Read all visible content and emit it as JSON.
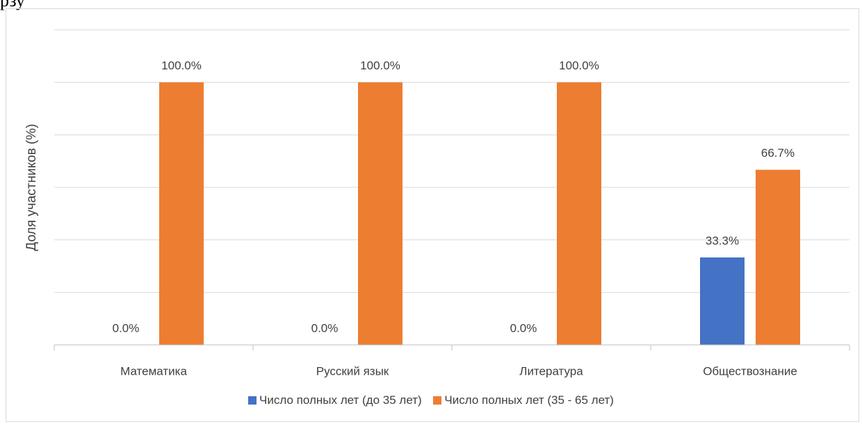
{
  "page_text": "рзу",
  "chart_data": {
    "type": "bar",
    "categories": [
      "Математика",
      "Русский язык",
      "Литература",
      "Обществознание"
    ],
    "series": [
      {
        "name": "Число полных лет (до 35 лет)",
        "values": [
          0.0,
          0.0,
          0.0,
          33.3
        ],
        "labels": [
          "0.0%",
          "0.0%",
          "0.0%",
          "33.3%"
        ],
        "color": "#4472c4"
      },
      {
        "name": "Число полных лет (35 - 65 лет)",
        "values": [
          100.0,
          100.0,
          100.0,
          66.7
        ],
        "labels": [
          "100.0%",
          "100.0%",
          "100.0%",
          "66.7%"
        ],
        "color": "#ed7d31"
      }
    ],
    "title": "",
    "xlabel": "",
    "ylabel": "Доля участников (%)",
    "ylim": [
      0,
      120
    ],
    "gridlines": true,
    "legend_position": "bottom"
  }
}
